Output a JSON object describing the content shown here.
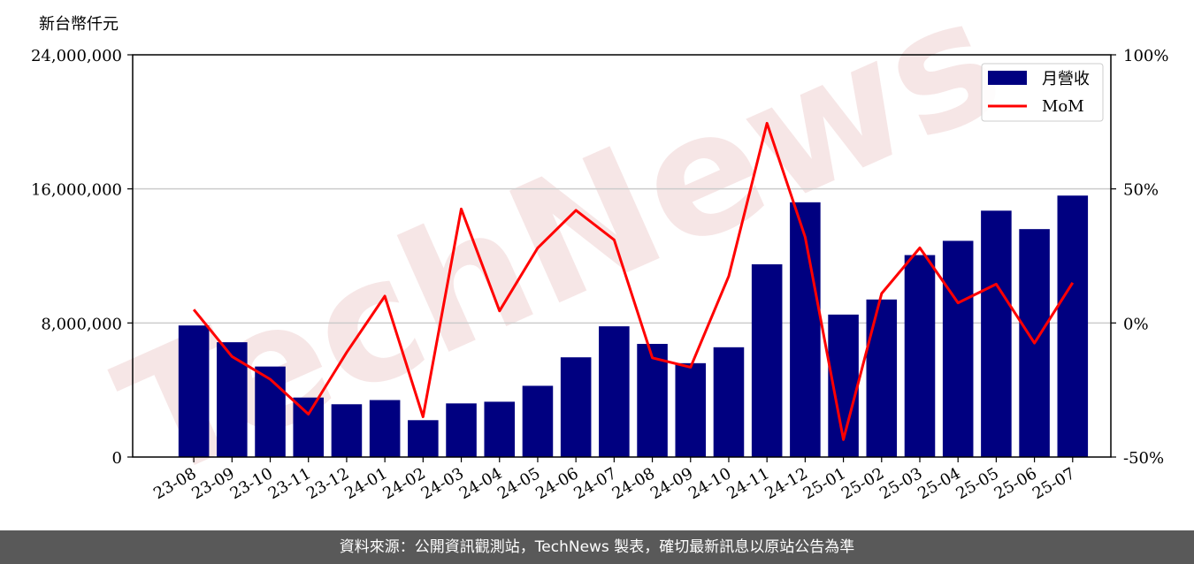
{
  "chart_data": {
    "type": "bar",
    "unit_label": "新台幣仟元",
    "categories": [
      "23-08",
      "23-09",
      "23-10",
      "23-11",
      "23-12",
      "24-01",
      "24-02",
      "24-03",
      "24-04",
      "24-05",
      "24-06",
      "24-07",
      "24-08",
      "24-09",
      "24-10",
      "24-11",
      "24-12",
      "25-01",
      "25-02",
      "25-03",
      "25-04",
      "25-05",
      "25-06",
      "25-07"
    ],
    "series": [
      {
        "name": "月營收",
        "type": "bar",
        "axis": "left",
        "color": "#000080",
        "values": [
          7850000,
          6850000,
          5400000,
          3550000,
          3150000,
          3400000,
          2200000,
          3200000,
          3300000,
          4250000,
          5950000,
          7800000,
          6750000,
          5600000,
          6550000,
          11500000,
          15200000,
          8500000,
          9400000,
          12050000,
          12900000,
          14700000,
          13600000,
          15600000
        ]
      },
      {
        "name": "MoM",
        "type": "line",
        "axis": "right",
        "color": "#ff0000",
        "values": [
          5,
          -12.5,
          -21,
          -34,
          -11,
          10,
          -35,
          42.5,
          4.5,
          28,
          42,
          31,
          -13,
          -16.5,
          17.5,
          74.5,
          32,
          -43.5,
          11,
          28,
          7.5,
          14.5,
          -7.5,
          15
        ]
      }
    ],
    "y_left": {
      "lim": [
        0,
        24000000
      ],
      "ticks": [
        0,
        8000000,
        16000000,
        24000000
      ],
      "tick_labels": [
        "0",
        "8,000,000",
        "16,000,000",
        "24,000,000"
      ]
    },
    "y_right": {
      "lim": [
        -50,
        100
      ],
      "ticks": [
        -50,
        0,
        50,
        100
      ],
      "tick_labels": [
        "-50%",
        "0%",
        "50%",
        "100%"
      ]
    },
    "grid": "horizontal",
    "legend": "top-right",
    "watermark": "TechNews"
  },
  "footer": {
    "text": "資料來源：公開資訊觀測站，TechNews 製表，確切最新訊息以原站公告為準"
  }
}
